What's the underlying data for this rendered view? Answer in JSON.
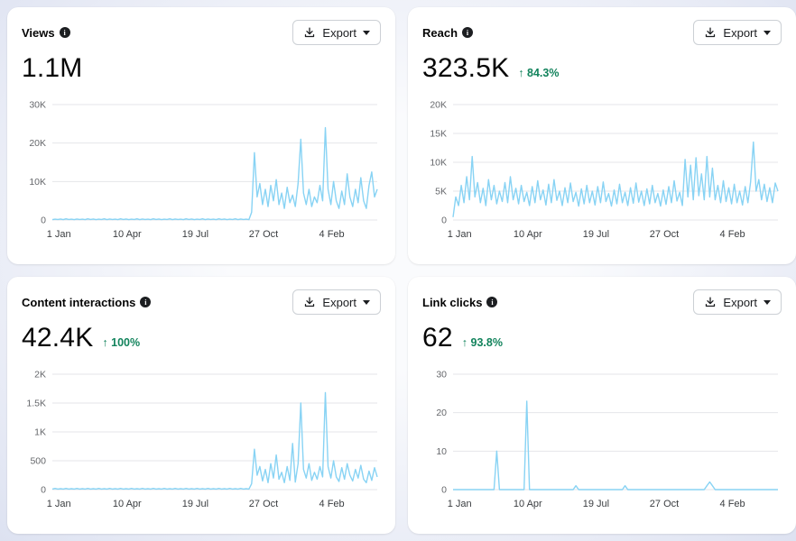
{
  "export_label": "Export",
  "colors": {
    "line": "#88d3f4",
    "positive": "#12835c",
    "grid": "#e4e6ea",
    "axis_label": "#65676b"
  },
  "cards": [
    {
      "title": "Views",
      "metric": "1.1M",
      "delta": ""
    },
    {
      "title": "Reach",
      "metric": "323.5K",
      "delta": "↑ 84.3%"
    },
    {
      "title": "Content interactions",
      "metric": "42.4K",
      "delta": "↑ 100%"
    },
    {
      "title": "Link clicks",
      "metric": "62",
      "delta": "↑ 93.8%"
    }
  ],
  "chart_data": [
    {
      "type": "line",
      "title": "Views",
      "xlabel": "",
      "ylabel": "",
      "ylim": [
        0,
        30000
      ],
      "yticks": [
        {
          "v": 0,
          "label": "0"
        },
        {
          "v": 10000,
          "label": "10K"
        },
        {
          "v": 20000,
          "label": "20K"
        },
        {
          "v": 30000,
          "label": "30K"
        }
      ],
      "xticks": [
        {
          "f": 0.02,
          "label": "1 Jan"
        },
        {
          "f": 0.23,
          "label": "10 Apr"
        },
        {
          "f": 0.44,
          "label": "19 Jul"
        },
        {
          "f": 0.65,
          "label": "27 Oct"
        },
        {
          "f": 0.86,
          "label": "4 Feb"
        }
      ],
      "values": [
        100,
        200,
        150,
        250,
        100,
        300,
        150,
        200,
        100,
        250,
        150,
        200,
        100,
        300,
        150,
        250,
        100,
        200,
        150,
        300,
        100,
        250,
        150,
        200,
        100,
        300,
        150,
        250,
        100,
        200,
        150,
        300,
        100,
        250,
        150,
        200,
        100,
        300,
        150,
        250,
        100,
        200,
        150,
        300,
        100,
        250,
        150,
        200,
        100,
        300,
        150,
        250,
        100,
        200,
        150,
        300,
        100,
        250,
        150,
        200,
        100,
        300,
        150,
        250,
        100,
        200,
        150,
        300,
        100,
        250,
        150,
        200,
        100,
        2000,
        17500,
        6000,
        9500,
        4000,
        8000,
        3500,
        9000,
        5000,
        10500,
        4000,
        7000,
        3000,
        8500,
        4500,
        6500,
        3500,
        9500,
        21000,
        7000,
        4000,
        8000,
        3500,
        6000,
        4500,
        9000,
        5000,
        24000,
        8000,
        4000,
        10000,
        5000,
        3000,
        7500,
        4000,
        12000,
        6000,
        3500,
        8000,
        4500,
        11000,
        5000,
        3000,
        9000,
        12500,
        6000,
        8000
      ]
    },
    {
      "type": "line",
      "title": "Reach",
      "xlabel": "",
      "ylabel": "",
      "ylim": [
        0,
        20000
      ],
      "yticks": [
        {
          "v": 0,
          "label": "0"
        },
        {
          "v": 5000,
          "label": "5K"
        },
        {
          "v": 10000,
          "label": "10K"
        },
        {
          "v": 15000,
          "label": "15K"
        },
        {
          "v": 20000,
          "label": "20K"
        }
      ],
      "xticks": [
        {
          "f": 0.02,
          "label": "1 Jan"
        },
        {
          "f": 0.23,
          "label": "10 Apr"
        },
        {
          "f": 0.44,
          "label": "19 Jul"
        },
        {
          "f": 0.65,
          "label": "27 Oct"
        },
        {
          "f": 0.86,
          "label": "4 Feb"
        }
      ],
      "values": [
        500,
        4000,
        2500,
        6000,
        3000,
        7500,
        3500,
        11000,
        4000,
        6500,
        3000,
        5500,
        2500,
        7000,
        3500,
        6000,
        2800,
        5000,
        3200,
        6500,
        3000,
        7500,
        3500,
        5500,
        2800,
        6000,
        3200,
        4800,
        2500,
        5800,
        3000,
        6800,
        3500,
        5200,
        2600,
        6200,
        3000,
        7000,
        3400,
        5000,
        2500,
        5600,
        3000,
        6400,
        3200,
        4800,
        2400,
        5400,
        2800,
        6000,
        3000,
        5000,
        2600,
        5800,
        3000,
        6600,
        3200,
        4600,
        2400,
        5200,
        2800,
        6200,
        3000,
        4800,
        2500,
        5600,
        2900,
        6400,
        3100,
        5000,
        2500,
        5400,
        2800,
        6000,
        3000,
        4600,
        2400,
        5200,
        2700,
        5800,
        3000,
        6800,
        3300,
        4800,
        2500,
        10500,
        4000,
        9500,
        3500,
        10800,
        4200,
        8000,
        3500,
        11000,
        4000,
        9000,
        3500,
        6000,
        3000,
        6800,
        3200,
        5600,
        2800,
        6200,
        3000,
        5000,
        2600,
        5800,
        3000,
        6600,
        13500,
        5000,
        7000,
        3500,
        6200,
        3200,
        5600,
        3000,
        6400,
        5000
      ]
    },
    {
      "type": "line",
      "title": "Content interactions",
      "xlabel": "",
      "ylabel": "",
      "ylim": [
        0,
        2000
      ],
      "yticks": [
        {
          "v": 0,
          "label": "0"
        },
        {
          "v": 500,
          "label": "500"
        },
        {
          "v": 1000,
          "label": "1K"
        },
        {
          "v": 1500,
          "label": "1.5K"
        },
        {
          "v": 2000,
          "label": "2K"
        }
      ],
      "xticks": [
        {
          "f": 0.02,
          "label": "1 Jan"
        },
        {
          "f": 0.23,
          "label": "10 Apr"
        },
        {
          "f": 0.44,
          "label": "19 Jul"
        },
        {
          "f": 0.65,
          "label": "27 Oct"
        },
        {
          "f": 0.86,
          "label": "4 Feb"
        }
      ],
      "values": [
        10,
        20,
        10,
        15,
        10,
        20,
        10,
        15,
        10,
        20,
        10,
        15,
        10,
        20,
        10,
        15,
        10,
        20,
        10,
        15,
        10,
        20,
        10,
        15,
        10,
        20,
        10,
        15,
        10,
        20,
        10,
        15,
        10,
        20,
        10,
        15,
        10,
        20,
        10,
        15,
        10,
        20,
        10,
        15,
        10,
        20,
        10,
        15,
        10,
        20,
        10,
        15,
        10,
        20,
        10,
        15,
        10,
        20,
        10,
        15,
        10,
        20,
        10,
        15,
        10,
        20,
        10,
        15,
        10,
        20,
        10,
        15,
        10,
        100,
        700,
        250,
        400,
        150,
        350,
        120,
        450,
        200,
        600,
        180,
        300,
        120,
        400,
        160,
        800,
        130,
        450,
        1500,
        350,
        200,
        450,
        160,
        300,
        180,
        400,
        220,
        1680,
        400,
        200,
        500,
        220,
        140,
        380,
        180,
        450,
        250,
        150,
        350,
        200,
        420,
        180,
        120,
        320,
        160,
        380,
        220
      ]
    },
    {
      "type": "line",
      "title": "Link clicks",
      "xlabel": "",
      "ylabel": "",
      "ylim": [
        0,
        30
      ],
      "yticks": [
        {
          "v": 0,
          "label": "0"
        },
        {
          "v": 10,
          "label": "10"
        },
        {
          "v": 20,
          "label": "20"
        },
        {
          "v": 30,
          "label": "30"
        }
      ],
      "xticks": [
        {
          "f": 0.02,
          "label": "1 Jan"
        },
        {
          "f": 0.23,
          "label": "10 Apr"
        },
        {
          "f": 0.44,
          "label": "19 Jul"
        },
        {
          "f": 0.65,
          "label": "27 Oct"
        },
        {
          "f": 0.86,
          "label": "4 Feb"
        }
      ],
      "values": [
        0,
        0,
        0,
        0,
        0,
        0,
        0,
        0,
        0,
        0,
        0,
        0,
        0,
        0,
        0,
        0,
        10,
        0,
        0,
        0,
        0,
        0,
        0,
        0,
        0,
        0,
        0,
        23,
        0,
        0,
        0,
        0,
        0,
        0,
        0,
        0,
        0,
        0,
        0,
        0,
        0,
        0,
        0,
        0,
        0,
        1,
        0,
        0,
        0,
        0,
        0,
        0,
        0,
        0,
        0,
        0,
        0,
        0,
        0,
        0,
        0,
        0,
        0,
        1,
        0,
        0,
        0,
        0,
        0,
        0,
        0,
        0,
        0,
        0,
        0,
        0,
        0,
        0,
        0,
        0,
        0,
        0,
        0,
        0,
        0,
        0,
        0,
        0,
        0,
        0,
        0,
        0,
        0,
        1,
        2,
        1,
        0,
        0,
        0,
        0,
        0,
        0,
        0,
        0,
        0,
        0,
        0,
        0,
        0,
        0,
        0,
        0,
        0,
        0,
        0,
        0,
        0,
        0,
        0,
        0
      ]
    }
  ]
}
